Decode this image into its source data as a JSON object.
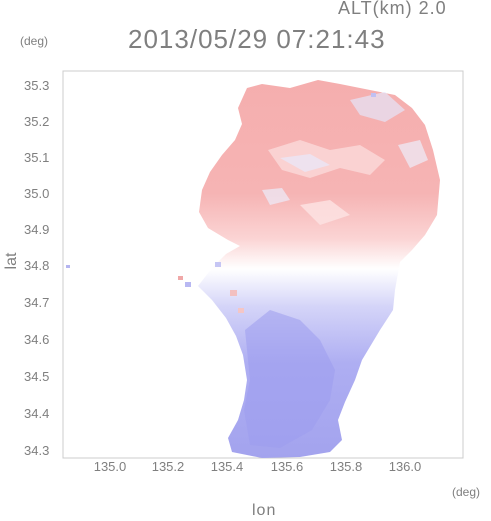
{
  "header": {
    "altitude": "ALT(km) 2.0",
    "timestamp": "2013/05/29 07:21:43"
  },
  "axes": {
    "y_unit": "(deg)",
    "x_unit": "(deg)",
    "x_title": "lon",
    "y_title": "lat",
    "x_ticks": [
      "135.0",
      "135.2",
      "135.4",
      "135.6",
      "135.8",
      "136.0"
    ],
    "y_ticks": [
      "35.3",
      "35.2",
      "35.1",
      "35.0",
      "34.9",
      "34.8",
      "34.7",
      "34.6",
      "34.5",
      "34.4",
      "34.3"
    ],
    "x_range": [
      134.87,
      136.17
    ],
    "y_range": [
      34.28,
      35.34
    ]
  },
  "colors": {
    "approaching": "#9b9bf0",
    "receding": "#f2a3a3",
    "neutral": "#ffffff",
    "frame": "#cccccc",
    "text": "#7f7f7f"
  }
}
